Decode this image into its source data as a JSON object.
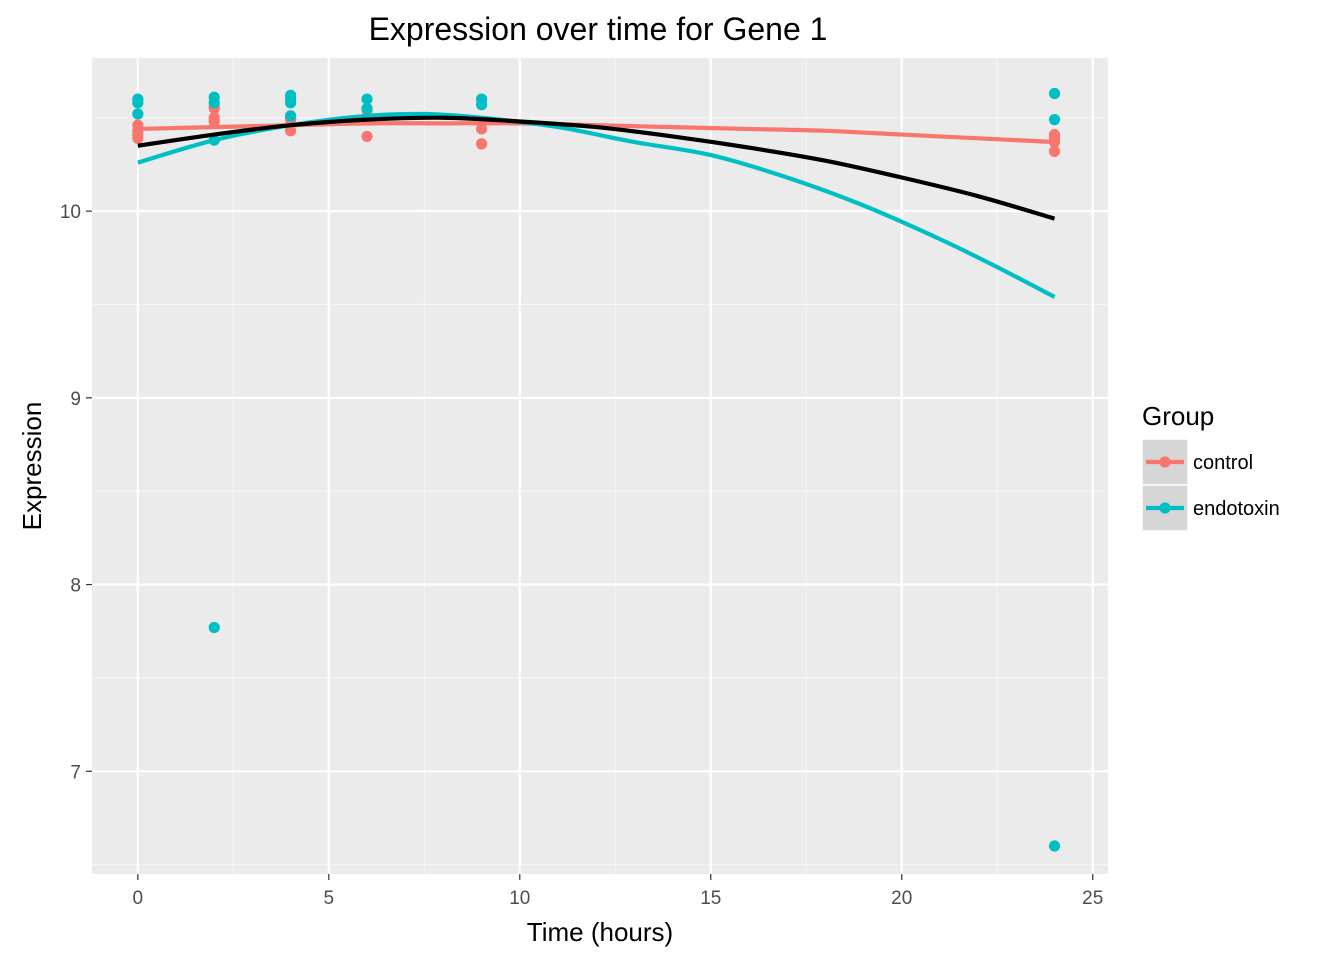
{
  "chart_data": {
    "type": "scatter",
    "title": "Expression over time for Gene 1",
    "xlabel": "Time (hours)",
    "ylabel": "Expression",
    "xlim": [
      -1.2,
      25.4
    ],
    "ylim": [
      6.45,
      10.82
    ],
    "x_ticks": [
      0,
      5,
      10,
      15,
      20,
      25
    ],
    "x_tick_labels": [
      "0",
      "5",
      "10",
      "15",
      "20",
      "25"
    ],
    "y_ticks": [
      7,
      8,
      9,
      10
    ],
    "y_tick_labels": [
      "7",
      "8",
      "9",
      "10"
    ],
    "grid": true,
    "legend": {
      "title": "Group",
      "position": "right"
    },
    "series": [
      {
        "name": "control",
        "color": "#F8766D",
        "points": [
          {
            "x": 0,
            "y": 10.46
          },
          {
            "x": 0,
            "y": 10.43
          },
          {
            "x": 0,
            "y": 10.41
          },
          {
            "x": 0,
            "y": 10.39
          },
          {
            "x": 2,
            "y": 10.56
          },
          {
            "x": 2,
            "y": 10.55
          },
          {
            "x": 2,
            "y": 10.5
          },
          {
            "x": 2,
            "y": 10.48
          },
          {
            "x": 4,
            "y": 10.5
          },
          {
            "x": 4,
            "y": 10.49
          },
          {
            "x": 4,
            "y": 10.43
          },
          {
            "x": 6,
            "y": 10.54
          },
          {
            "x": 6,
            "y": 10.4
          },
          {
            "x": 9,
            "y": 10.44
          },
          {
            "x": 9,
            "y": 10.36
          },
          {
            "x": 24,
            "y": 10.41
          },
          {
            "x": 24,
            "y": 10.39
          },
          {
            "x": 24,
            "y": 10.37
          },
          {
            "x": 24,
            "y": 10.32
          }
        ],
        "fit": [
          {
            "x": 0,
            "y": 10.44
          },
          {
            "x": 2,
            "y": 10.45
          },
          {
            "x": 4,
            "y": 10.46
          },
          {
            "x": 6,
            "y": 10.47
          },
          {
            "x": 8,
            "y": 10.47
          },
          {
            "x": 10,
            "y": 10.47
          },
          {
            "x": 12,
            "y": 10.46
          },
          {
            "x": 14,
            "y": 10.45
          },
          {
            "x": 16,
            "y": 10.44
          },
          {
            "x": 18,
            "y": 10.43
          },
          {
            "x": 20,
            "y": 10.41
          },
          {
            "x": 22,
            "y": 10.39
          },
          {
            "x": 24,
            "y": 10.37
          }
        ]
      },
      {
        "name": "endotoxin",
        "color": "#00BFC4",
        "points": [
          {
            "x": 0,
            "y": 10.6
          },
          {
            "x": 0,
            "y": 10.58
          },
          {
            "x": 0,
            "y": 10.52
          },
          {
            "x": 2,
            "y": 10.61
          },
          {
            "x": 2,
            "y": 10.58
          },
          {
            "x": 2,
            "y": 10.38
          },
          {
            "x": 2,
            "y": 7.77
          },
          {
            "x": 4,
            "y": 10.62
          },
          {
            "x": 4,
            "y": 10.6
          },
          {
            "x": 4,
            "y": 10.58
          },
          {
            "x": 4,
            "y": 10.51
          },
          {
            "x": 6,
            "y": 10.6
          },
          {
            "x": 6,
            "y": 10.55
          },
          {
            "x": 9,
            "y": 10.6
          },
          {
            "x": 9,
            "y": 10.57
          },
          {
            "x": 24,
            "y": 10.63
          },
          {
            "x": 24,
            "y": 10.49
          },
          {
            "x": 24,
            "y": 6.6
          }
        ],
        "fit": [
          {
            "x": 0,
            "y": 10.26
          },
          {
            "x": 2,
            "y": 10.38
          },
          {
            "x": 4,
            "y": 10.46
          },
          {
            "x": 6,
            "y": 10.51
          },
          {
            "x": 7.5,
            "y": 10.52
          },
          {
            "x": 9,
            "y": 10.5
          },
          {
            "x": 11,
            "y": 10.45
          },
          {
            "x": 13,
            "y": 10.37
          },
          {
            "x": 15,
            "y": 10.3
          },
          {
            "x": 17,
            "y": 10.18
          },
          {
            "x": 19,
            "y": 10.03
          },
          {
            "x": 21,
            "y": 9.85
          },
          {
            "x": 22.5,
            "y": 9.7
          },
          {
            "x": 24,
            "y": 9.54
          }
        ]
      }
    ],
    "overall_fit": {
      "color": "#000000",
      "points": [
        {
          "x": 0,
          "y": 10.35
        },
        {
          "x": 2,
          "y": 10.41
        },
        {
          "x": 4,
          "y": 10.46
        },
        {
          "x": 6,
          "y": 10.49
        },
        {
          "x": 8,
          "y": 10.5
        },
        {
          "x": 10,
          "y": 10.48
        },
        {
          "x": 12,
          "y": 10.45
        },
        {
          "x": 14,
          "y": 10.4
        },
        {
          "x": 16,
          "y": 10.34
        },
        {
          "x": 18,
          "y": 10.27
        },
        {
          "x": 20,
          "y": 10.18
        },
        {
          "x": 22,
          "y": 10.08
        },
        {
          "x": 24,
          "y": 9.96
        }
      ]
    }
  }
}
